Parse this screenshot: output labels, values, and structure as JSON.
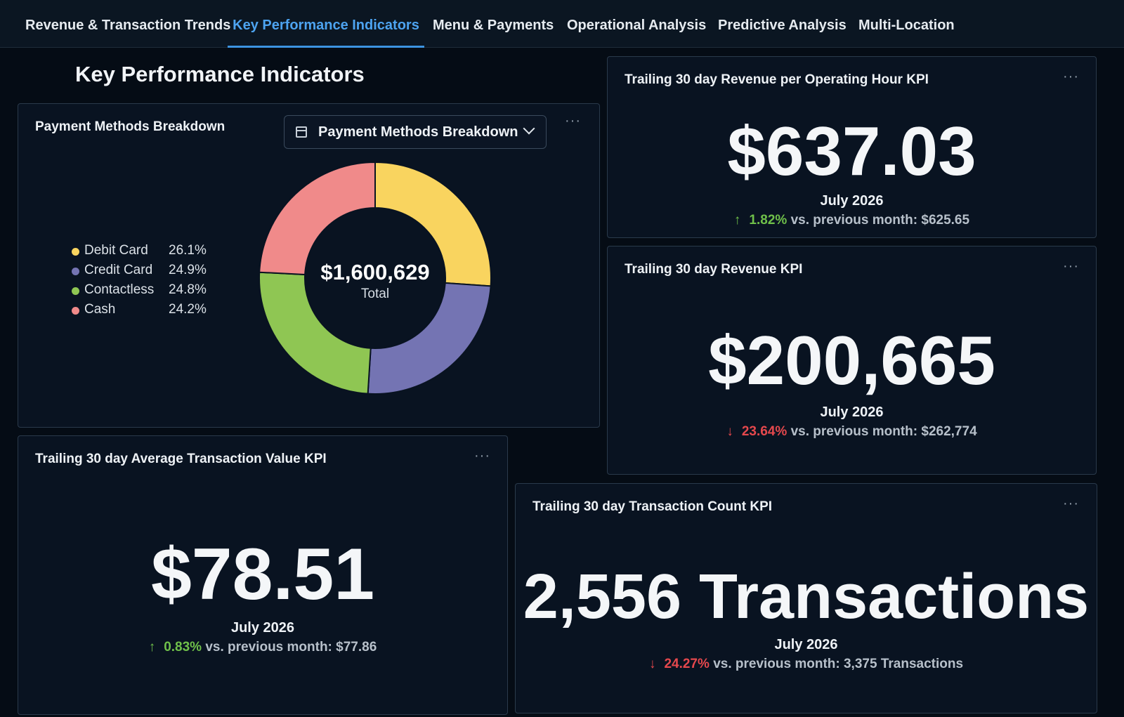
{
  "nav": {
    "tabs": [
      {
        "label": "Revenue & Transaction Trends"
      },
      {
        "label": "Key Performance Indicators"
      },
      {
        "label": "Menu & Payments"
      },
      {
        "label": "Operational Analysis"
      },
      {
        "label": "Predictive Analysis"
      },
      {
        "label": "Multi-Location"
      }
    ],
    "active_tab": "Key Performance Indicators"
  },
  "page_title": "Key Performance Indicators",
  "menu_glyph": "···",
  "payment_card": {
    "title": "Payment Methods Breakdown",
    "dropdown_label": "Payment Methods Breakdown",
    "dropdown_icon": "calendar-icon",
    "total_value": "$1,600,629",
    "total_label": "Total",
    "legend": [
      {
        "name": "Debit Card",
        "pct": "26.1%"
      },
      {
        "name": "Credit Card",
        "pct": "24.9%"
      },
      {
        "name": "Contactless",
        "pct": "24.8%"
      },
      {
        "name": "Cash",
        "pct": "24.2%"
      }
    ]
  },
  "chart_data": {
    "type": "pie",
    "categories": [
      "Debit Card",
      "Credit Card",
      "Contactless",
      "Cash"
    ],
    "values": [
      26.1,
      24.9,
      24.8,
      24.2
    ],
    "colors": [
      "#f9d45f",
      "#7474b3",
      "#8fc653",
      "#f08a8a"
    ],
    "title": "Payment Methods Breakdown",
    "legend_position": "left"
  },
  "kpis": {
    "rev_per_hour": {
      "title": "Trailing 30 day Revenue per Operating Hour KPI",
      "value": "$637.03",
      "period": "July 2026",
      "direction": "up",
      "change": "1.82%",
      "comparison": "vs. previous month: $625.65"
    },
    "revenue": {
      "title": "Trailing 30 day Revenue KPI",
      "value": "$200,665",
      "period": "July 2026",
      "direction": "down",
      "change": "23.64%",
      "comparison": "vs. previous month: $262,774"
    },
    "avg_transaction": {
      "title": "Trailing 30 day Average Transaction Value KPI",
      "value": "$78.51",
      "period": "July 2026",
      "direction": "up",
      "change": "0.83%",
      "comparison": "vs. previous month: $77.86"
    },
    "transaction_count": {
      "title": "Trailing 30 day Transaction Count KPI",
      "value": "2,556 Transactions",
      "period": "July 2026",
      "direction": "down",
      "change": "24.27%",
      "comparison": "vs. previous month: 3,375 Transactions"
    }
  },
  "colors": {
    "up": "#6fc04a",
    "down": "#e5484d",
    "active_tab": "#4da3f0",
    "background": "#050c15"
  }
}
